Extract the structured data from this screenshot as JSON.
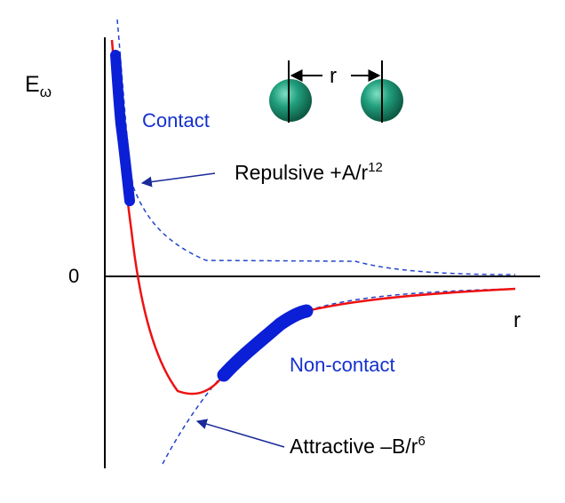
{
  "diagram": {
    "y_axis_label_main": "E",
    "y_axis_label_sub": "ω",
    "zero_label": "0",
    "x_axis_label": "r",
    "separation_label": "r",
    "contact_label": "Contact",
    "noncontact_label": "Non-contact",
    "repulsive_label": "Repulsive  +A/r",
    "repulsive_exponent": "12",
    "attractive_label": "Attractive –B/r",
    "attractive_exponent": "6"
  },
  "colors": {
    "potential_curve": "#ee1111",
    "component_curves": "#2244cc",
    "highlight_regions": "#0b1fd6",
    "atoms": "#1e9a78",
    "axes": "#000000",
    "labels": "#000000",
    "region_labels": "#1430d0",
    "arrows": "#1a2a99"
  }
}
